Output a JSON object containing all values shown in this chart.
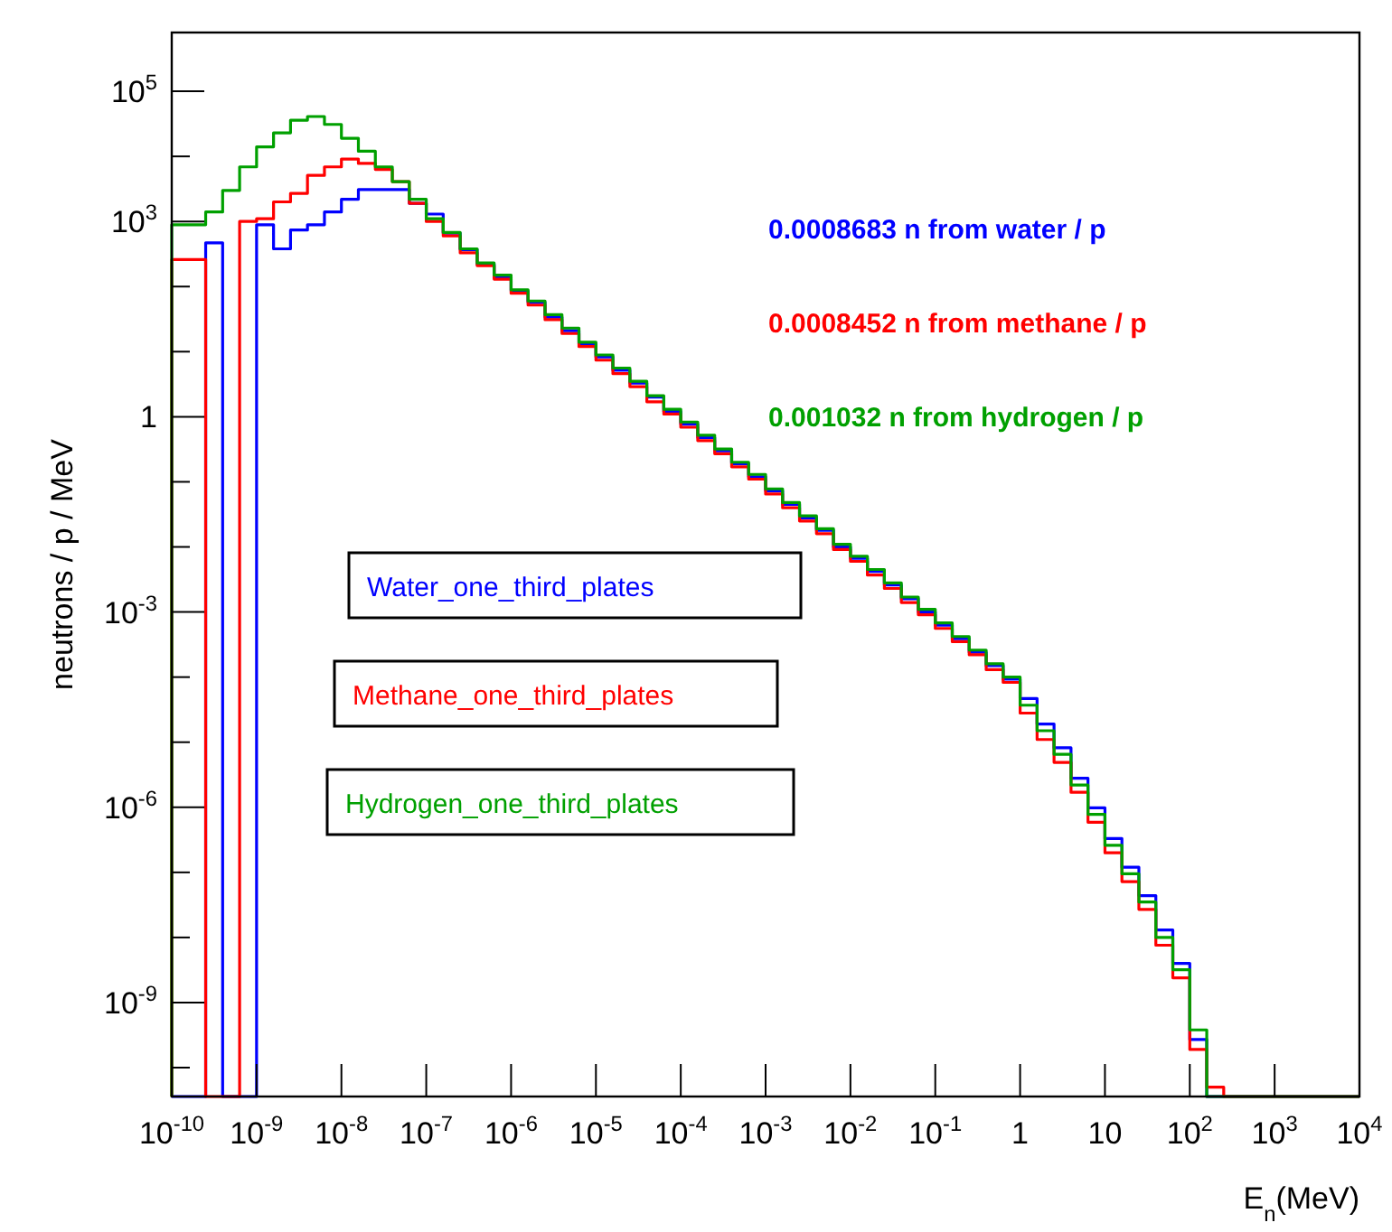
{
  "chart_data": {
    "type": "histogram",
    "xlabel": "E$_{n}$(MeV)",
    "ylabel": "neutrons / p / MeV",
    "log": "xy",
    "grid": false,
    "legend": "left",
    "xlim": [
      1e-10,
      10000.0
    ],
    "ylim": [
      3.6e-11,
      800000.0
    ],
    "xticks": [
      {
        "value": 1e-10,
        "label": "10$^{-10}$"
      },
      {
        "value": 1e-09,
        "label": "10$^{-9}$"
      },
      {
        "value": 1e-08,
        "label": "10$^{-8}$"
      },
      {
        "value": 1e-07,
        "label": "10$^{-7}$"
      },
      {
        "value": 1e-06,
        "label": "10$^{-6}$"
      },
      {
        "value": 1e-05,
        "label": "10$^{-5}$"
      },
      {
        "value": 0.0001,
        "label": "10$^{-4}$"
      },
      {
        "value": 0.001,
        "label": "10$^{-3}$"
      },
      {
        "value": 0.01,
        "label": "10$^{-2}$"
      },
      {
        "value": 0.1,
        "label": "10$^{-1}$"
      },
      1,
      10,
      {
        "value": 100,
        "label": "10$^{2}$"
      },
      {
        "value": 1000,
        "label": "10$^{3}$"
      },
      {
        "value": 10000,
        "label": "10$^{4}$"
      }
    ],
    "yticks": [
      {
        "value": 100000.0,
        "label": "10$^{5}$"
      },
      {
        "value": 10000.0,
        "label": null
      },
      {
        "value": 1000.0,
        "label": "10$^{3}$"
      },
      {
        "value": 100,
        "label": null
      },
      {
        "value": 10,
        "label": null
      },
      1,
      {
        "value": 0.1,
        "label": null
      },
      {
        "value": 0.01,
        "label": null
      },
      {
        "value": 0.001,
        "label": "10$^{-3}$"
      },
      {
        "value": 0.0001,
        "label": null
      },
      {
        "value": 1e-05,
        "label": null
      },
      {
        "value": 1e-06,
        "label": "10$^{-6}$"
      },
      {
        "value": 1e-07,
        "label": null
      },
      {
        "value": 1e-08,
        "label": null
      },
      {
        "value": 1e-09,
        "label": "10$^{-9}$"
      },
      {
        "value": 1e-10,
        "label": null
      }
    ],
    "bins": [
      1e-10,
      1.585e-10,
      2.512e-10,
      3.981e-10,
      6.31e-10,
      1e-09,
      1.585e-09,
      2.512e-09,
      3.981e-09,
      6.31e-09,
      1e-08,
      1.585e-08,
      2.512e-08,
      3.981e-08,
      6.31e-08,
      1e-07,
      1.585e-07,
      2.512e-07,
      3.981e-07,
      6.31e-07,
      1e-06,
      1.585e-06,
      2.512e-06,
      3.981e-06,
      6.31e-06,
      1e-05,
      1.585e-05,
      2.512e-05,
      3.981e-05,
      6.31e-05,
      0.0001,
      0.0001585,
      0.0002512,
      0.0003981,
      0.000631,
      0.001,
      0.001585,
      0.002512,
      0.003981,
      0.00631,
      0.01,
      0.01585,
      0.02512,
      0.03981,
      0.0631,
      0.1,
      0.1585,
      0.2512,
      0.3981,
      0.631,
      1,
      1.585,
      2.512,
      3.981,
      6.31,
      10,
      15.85,
      25.12,
      39.81,
      63.1,
      100,
      158.5,
      251.2,
      398.1,
      631,
      1000,
      1585,
      2512,
      3981,
      6310,
      10000
    ],
    "series": [
      {
        "name": "Water_one_third_plates",
        "color": "#0000ff",
        "values": [
          null,
          null,
          470,
          null,
          null,
          890,
          380,
          740,
          890,
          1400,
          2200,
          3100,
          3100,
          3100,
          1900,
          1300,
          660,
          370,
          220,
          140,
          85,
          57,
          34,
          21,
          13,
          8.3,
          5.2,
          3.3,
          2,
          1.2,
          0.77,
          0.48,
          0.3,
          0.19,
          0.12,
          0.073,
          0.045,
          0.028,
          0.018,
          0.01,
          0.0067,
          0.0042,
          0.0026,
          0.0016,
          0.001,
          0.00063,
          0.00039,
          0.00024,
          0.00015,
          9.3e-05,
          4.7e-05,
          1.9e-05,
          8.2e-06,
          2.8e-06,
          9.8e-07,
          3.3e-07,
          1.2e-07,
          4.4e-08,
          1.3e-08,
          4e-09,
          2.7e-10,
          null,
          null,
          null,
          null,
          null,
          null,
          null,
          null,
          null
        ]
      },
      {
        "name": "Methane_one_third_plates",
        "color": "#ff0000",
        "values": [
          260,
          260,
          null,
          null,
          1000,
          1100,
          2000,
          2700,
          5100,
          6900,
          9100,
          7800,
          6300,
          4100,
          1900,
          1000,
          600,
          330,
          210,
          130,
          79,
          52,
          31,
          19,
          12,
          7.4,
          4.6,
          2.9,
          1.7,
          1.1,
          0.69,
          0.43,
          0.27,
          0.17,
          0.11,
          0.065,
          0.04,
          0.025,
          0.016,
          0.0091,
          0.006,
          0.0037,
          0.0023,
          0.0014,
          0.00091,
          0.00056,
          0.00035,
          0.00022,
          0.00013,
          8.3e-05,
          2.8e-05,
          1.1e-05,
          4.9e-06,
          1.7e-06,
          5.9e-07,
          2e-07,
          7.2e-08,
          2.7e-08,
          7.6e-09,
          2.4e-09,
          1.9e-10,
          5e-11,
          null,
          null,
          null,
          null,
          null,
          null,
          null,
          null
        ]
      },
      {
        "name": "Hydrogen_one_third_plates",
        "color": "#00a000",
        "values": [
          890,
          890,
          1400,
          3000,
          6900,
          14000,
          23000,
          36000,
          41000,
          31000,
          19000,
          12000,
          6900,
          4100,
          2200,
          1100,
          680,
          380,
          230,
          150,
          89,
          60,
          37,
          23,
          14,
          8.9,
          5.6,
          3.5,
          2.1,
          1.3,
          0.83,
          0.52,
          0.32,
          0.2,
          0.13,
          0.078,
          0.048,
          0.03,
          0.019,
          0.011,
          0.0072,
          0.0045,
          0.0028,
          0.0017,
          0.0011,
          0.00068,
          0.00042,
          0.00026,
          0.00016,
          0.0001,
          3.7e-05,
          1.5e-05,
          6.5e-06,
          2.2e-06,
          7.8e-07,
          2.6e-07,
          9.5e-08,
          3.5e-08,
          1e-08,
          3.2e-09,
          3.8e-10,
          null,
          null,
          null,
          null,
          null,
          null,
          null,
          null,
          null
        ]
      }
    ],
    "annotations": [
      "0.0008683 n from water / p",
      "0.0008452 n from methane / p",
      "0.001032 n from hydrogen / p"
    ]
  }
}
